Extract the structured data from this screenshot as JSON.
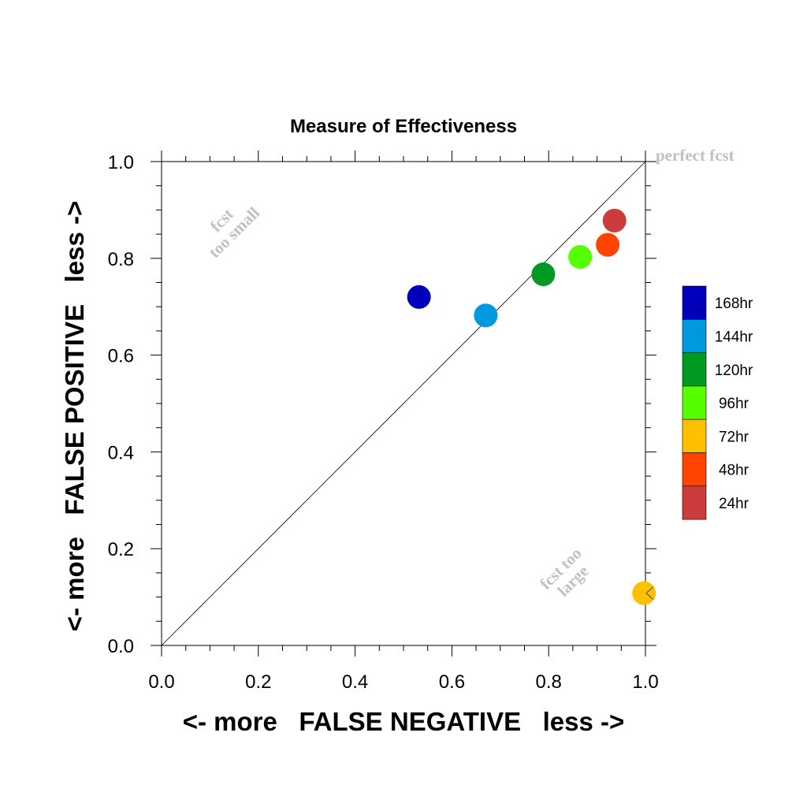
{
  "chart_data": {
    "type": "scatter",
    "title": "Measure of Effectiveness",
    "xlabel": "<- more   FALSE NEGATIVE   less ->",
    "ylabel": "<- more   FALSE POSITIVE   less ->",
    "xlim": [
      0.0,
      1.0
    ],
    "ylim": [
      0.0,
      1.0
    ],
    "x_ticks": [
      "0.0",
      "0.2",
      "0.4",
      "0.6",
      "0.8",
      "1.0"
    ],
    "y_ticks": [
      "0.0",
      "0.2",
      "0.4",
      "0.6",
      "0.8",
      "1.0"
    ],
    "grid": false,
    "diagonal_line": true,
    "series": [
      {
        "name": "168hr",
        "color": "#0000bb",
        "x": 0.532,
        "y": 0.72
      },
      {
        "name": "144hr",
        "color": "#0099dd",
        "x": 0.67,
        "y": 0.682
      },
      {
        "name": "120hr",
        "color": "#009922",
        "x": 0.789,
        "y": 0.767
      },
      {
        "name": "96hr",
        "color": "#55ff00",
        "x": 0.865,
        "y": 0.803
      },
      {
        "name": "72hr",
        "color": "#ffc000",
        "x": 0.997,
        "y": 0.108
      },
      {
        "name": "48hr",
        "color": "#ff4400",
        "x": 0.922,
        "y": 0.828
      },
      {
        "name": "24hr",
        "color": "#cc3c3c",
        "x": 0.936,
        "y": 0.878
      }
    ],
    "legend_position": "right",
    "annotations": {
      "perfect": "perfect fcst",
      "too_small_1": "fcst",
      "too_small_2": "too small",
      "too_large_1": "fcst too",
      "too_large_2": "large"
    }
  }
}
